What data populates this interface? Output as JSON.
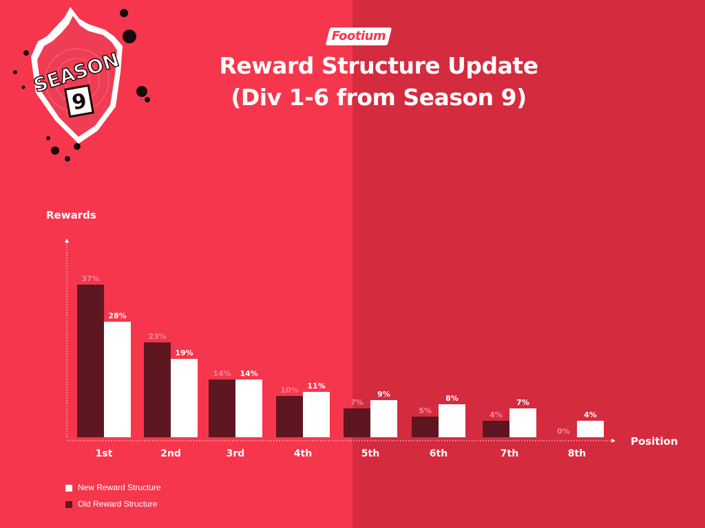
{
  "brand": {
    "logo_text": "Footium"
  },
  "header": {
    "title_line1": "Reward Structure Update",
    "title_line2": "(Div 1-6 from Season 9)"
  },
  "badge": {
    "word": "SEASON",
    "number": "9"
  },
  "colors": {
    "background_left": "#f6364c",
    "background_right": "#d52b3f",
    "new_structure": "#ffffff",
    "old_structure": "#5e1620",
    "old_label": "#f7879a"
  },
  "chart_data": {
    "type": "bar",
    "title": "Reward Structure Update (Div 1-6 from Season 9)",
    "xlabel": "Position",
    "ylabel": "Rewards",
    "categories": [
      "1st",
      "2nd",
      "3rd",
      "4th",
      "5th",
      "6th",
      "7th",
      "8th"
    ],
    "series": [
      {
        "name": "Old Reward Structure",
        "values": [
          37,
          23,
          14,
          10,
          7,
          5,
          4,
          0
        ],
        "labels": [
          "37%",
          "23%",
          "14%",
          "10%",
          "7%",
          "5%",
          "4%",
          "0%"
        ]
      },
      {
        "name": "New Reward Structure",
        "values": [
          28,
          19,
          14,
          11,
          9,
          8,
          7,
          4
        ],
        "labels": [
          "28%",
          "19%",
          "14%",
          "11%",
          "9%",
          "8%",
          "7%",
          "4%"
        ]
      }
    ],
    "ylim": [
      0,
      40
    ],
    "grid": false,
    "legend": [
      "New Reward Structure",
      "Old Reward Structure"
    ],
    "legend_position": "bottom-left"
  }
}
